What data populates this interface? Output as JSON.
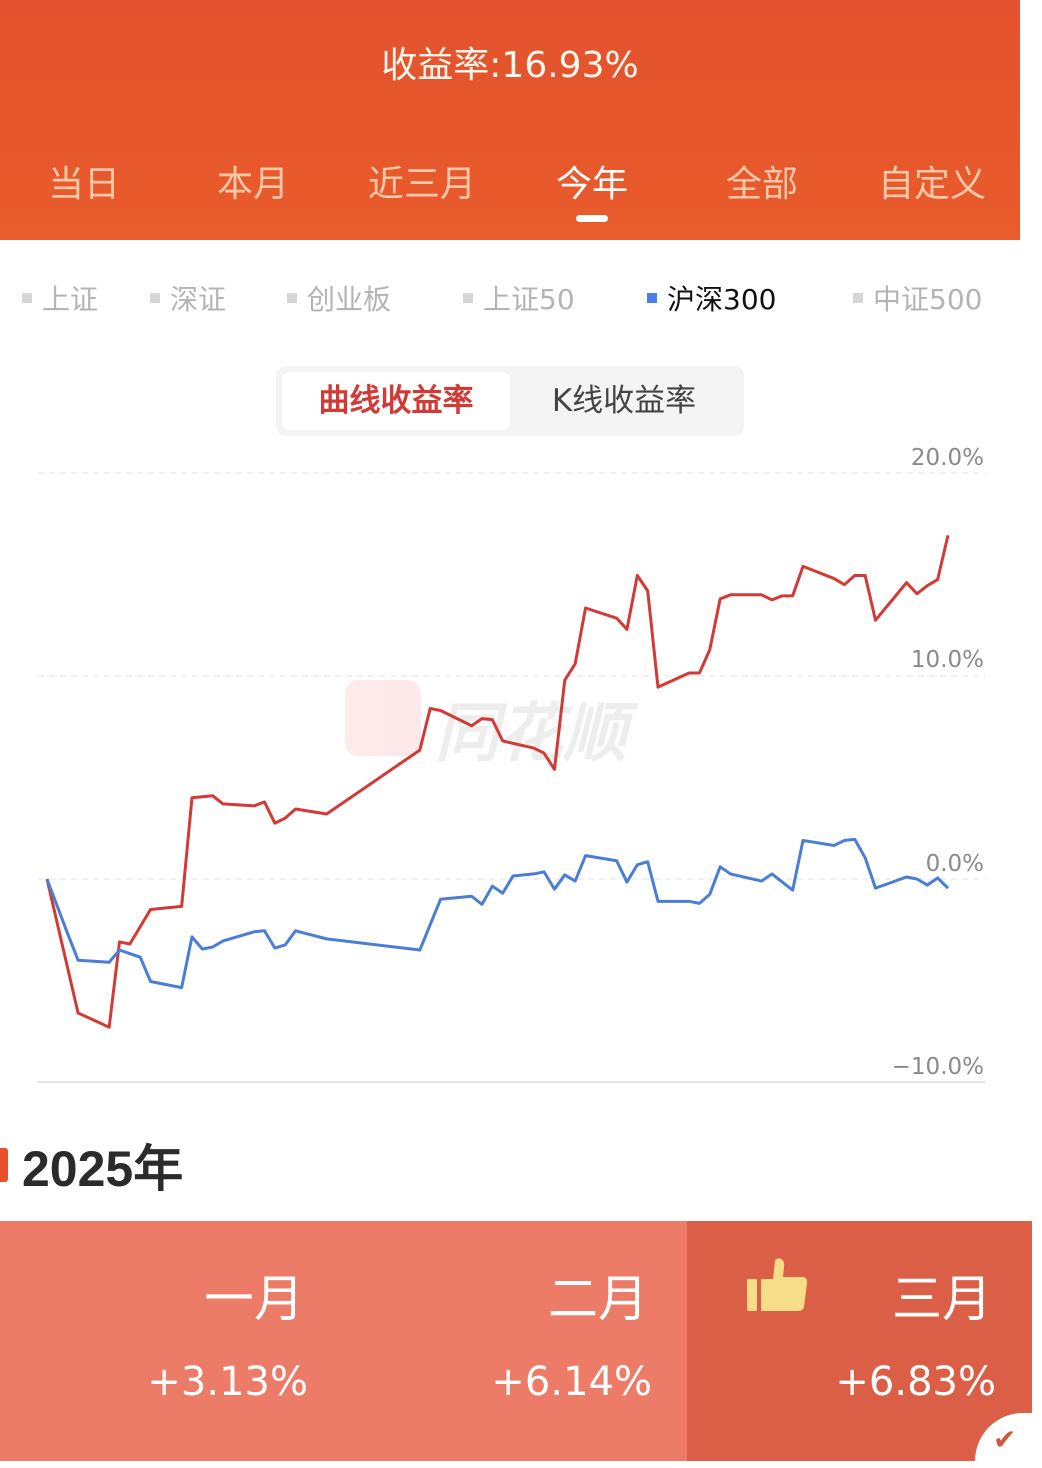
{
  "header": {
    "title": "收益率:16.93%",
    "tabs": [
      {
        "label": "当日",
        "active": false
      },
      {
        "label": "本月",
        "active": false
      },
      {
        "label": "近三月",
        "active": false
      },
      {
        "label": "今年",
        "active": true
      },
      {
        "label": "全部",
        "active": false
      },
      {
        "label": "自定义",
        "active": false
      }
    ],
    "color": "#e6562d"
  },
  "benchmarks": [
    {
      "label": "上证",
      "active": false
    },
    {
      "label": "深证",
      "active": false
    },
    {
      "label": "创业板",
      "active": false
    },
    {
      "label": "上证50",
      "active": false
    },
    {
      "label": "沪深300",
      "active": true
    },
    {
      "label": "中证500",
      "active": false
    }
  ],
  "chart_mode": {
    "options": [
      "曲线收益率",
      "K线收益率"
    ],
    "selected": "曲线收益率"
  },
  "watermark": "同花顺",
  "chart_data": {
    "type": "line",
    "ylim": [
      -10,
      20
    ],
    "yticks": [
      "20.0%",
      "10.0%",
      "0.0%",
      "−10.0%"
    ],
    "ytick_values": [
      20,
      10,
      0,
      -10
    ],
    "grid": true,
    "series": [
      {
        "color": "#d23a35",
        "points": [
          [
            0,
            0
          ],
          [
            3,
            -6.6
          ],
          [
            6,
            -7.3
          ],
          [
            7,
            -3.1
          ],
          [
            8,
            -3.2
          ],
          [
            10,
            -1.5
          ],
          [
            13,
            -1.35
          ],
          [
            14,
            4.0
          ],
          [
            16,
            4.1
          ],
          [
            17,
            3.7
          ],
          [
            20,
            3.6
          ],
          [
            21,
            3.8
          ],
          [
            22,
            2.75
          ],
          [
            23,
            3.0
          ],
          [
            24,
            3.45
          ],
          [
            27,
            3.2
          ],
          [
            36,
            6.35
          ],
          [
            37,
            8.4
          ],
          [
            38,
            8.3
          ],
          [
            41,
            7.55
          ],
          [
            42,
            7.9
          ],
          [
            43,
            7.85
          ],
          [
            44,
            6.8
          ],
          [
            47,
            6.45
          ],
          [
            48,
            6.2
          ],
          [
            49,
            5.4
          ],
          [
            50,
            9.8
          ],
          [
            51,
            10.6
          ],
          [
            52,
            13.35
          ],
          [
            55,
            12.85
          ],
          [
            56,
            12.3
          ],
          [
            57,
            14.95
          ],
          [
            58,
            14.2
          ],
          [
            59,
            9.45
          ],
          [
            62,
            10.15
          ],
          [
            63,
            10.15
          ],
          [
            64,
            11.3
          ],
          [
            65,
            13.8
          ],
          [
            66,
            14.0
          ],
          [
            69,
            14.0
          ],
          [
            70,
            13.75
          ],
          [
            71,
            13.95
          ],
          [
            72,
            13.95
          ],
          [
            73,
            15.4
          ],
          [
            76,
            14.8
          ],
          [
            77,
            14.5
          ],
          [
            78,
            14.95
          ],
          [
            79,
            14.95
          ],
          [
            80,
            12.75
          ],
          [
            83,
            14.6
          ],
          [
            84,
            14.05
          ],
          [
            85,
            14.45
          ],
          [
            86,
            14.75
          ],
          [
            87,
            16.93
          ]
        ]
      },
      {
        "name": "沪深300",
        "color": "#4a7ed6",
        "points": [
          [
            0,
            0
          ],
          [
            2,
            -2.7
          ],
          [
            3,
            -4.0
          ],
          [
            6,
            -4.1
          ],
          [
            7,
            -3.5
          ],
          [
            9,
            -3.85
          ],
          [
            10,
            -5.05
          ],
          [
            13,
            -5.35
          ],
          [
            14,
            -2.85
          ],
          [
            15,
            -3.45
          ],
          [
            16,
            -3.35
          ],
          [
            17,
            -3.05
          ],
          [
            20,
            -2.6
          ],
          [
            21,
            -2.55
          ],
          [
            22,
            -3.4
          ],
          [
            23,
            -3.25
          ],
          [
            24,
            -2.55
          ],
          [
            27,
            -2.95
          ],
          [
            36,
            -3.5
          ],
          [
            38,
            -1.0
          ],
          [
            41,
            -0.85
          ],
          [
            42,
            -1.25
          ],
          [
            43,
            -0.35
          ],
          [
            44,
            -0.7
          ],
          [
            45,
            0.15
          ],
          [
            47,
            0.25
          ],
          [
            48,
            0.35
          ],
          [
            49,
            -0.5
          ],
          [
            50,
            0.2
          ],
          [
            51,
            -0.1
          ],
          [
            52,
            1.15
          ],
          [
            55,
            0.9
          ],
          [
            56,
            -0.15
          ],
          [
            57,
            0.7
          ],
          [
            58,
            0.85
          ],
          [
            59,
            -1.1
          ],
          [
            62,
            -1.1
          ],
          [
            63,
            -1.2
          ],
          [
            64,
            -0.75
          ],
          [
            65,
            0.6
          ],
          [
            66,
            0.25
          ],
          [
            69,
            -0.1
          ],
          [
            70,
            0.25
          ],
          [
            72,
            -0.55
          ],
          [
            73,
            1.9
          ],
          [
            76,
            1.65
          ],
          [
            77,
            1.9
          ],
          [
            78,
            1.95
          ],
          [
            79,
            1.05
          ],
          [
            80,
            -0.45
          ],
          [
            83,
            0.1
          ],
          [
            84,
            0.0
          ],
          [
            85,
            -0.3
          ],
          [
            86,
            0.05
          ],
          [
            87,
            -0.45
          ]
        ]
      }
    ]
  },
  "year_section": {
    "title": "2025年",
    "months": [
      {
        "name": "一月",
        "value": "+3.13%",
        "best": false
      },
      {
        "name": "二月",
        "value": "+6.14%",
        "best": false
      },
      {
        "name": "三月",
        "value": "+6.83%",
        "best": true
      }
    ]
  }
}
